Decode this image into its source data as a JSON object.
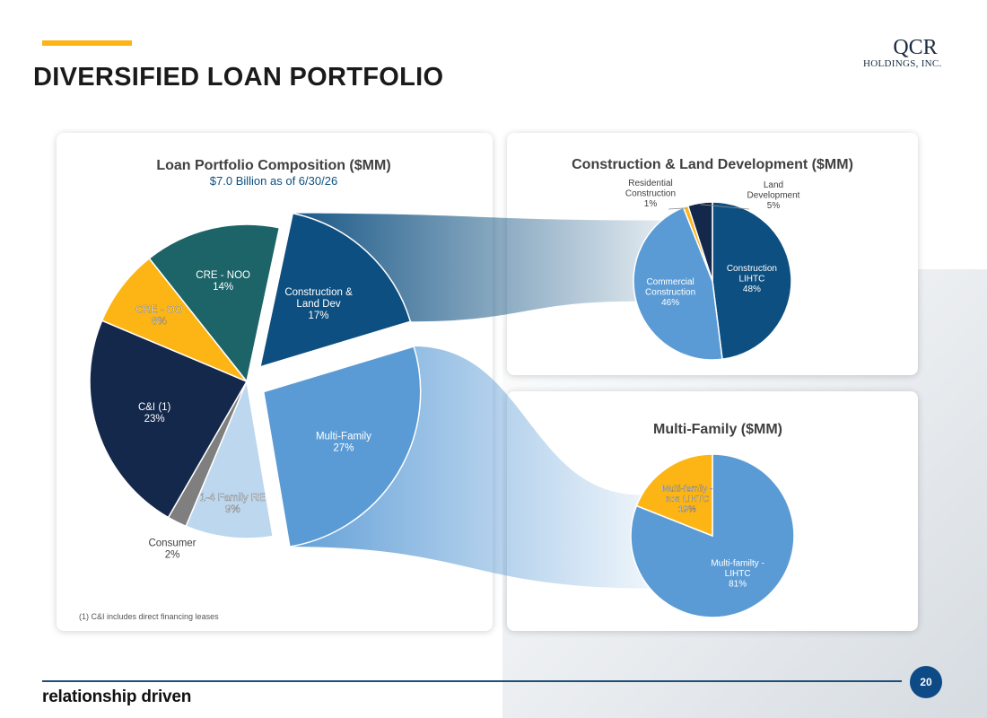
{
  "header": {
    "title": "DIVERSIFIED LOAN PORTFOLIO",
    "accent_color": "#FDB515"
  },
  "logo": {
    "line1": "QCR",
    "line2": "HOLDINGS, INC."
  },
  "chart_data": [
    {
      "type": "pie",
      "title": "Loan Portfolio Composition ($MM)",
      "subtitle": "$7.0 Billion as of 6/30/26",
      "slices": [
        {
          "name": "Construction & Land Dev",
          "value": 17,
          "label_lines": [
            "Construction &",
            "Land Dev",
            "17%"
          ],
          "color": "#0D4F80",
          "exploded": true
        },
        {
          "name": "Multi-Family",
          "value": 27,
          "label_lines": [
            "Multi-Family",
            "27%"
          ],
          "color": "#5B9BD5",
          "exploded": true
        },
        {
          "name": "1-4 Family RE",
          "value": 9,
          "label_lines": [
            "1-4 Family RE",
            "9%"
          ],
          "color": "#BDD7EE"
        },
        {
          "name": "Consumer",
          "value": 2,
          "label_lines": [
            "Consumer",
            "2%"
          ],
          "color": "#7F7F7F"
        },
        {
          "name": "C&I (1)",
          "value": 23,
          "label_lines": [
            "C&I (1)",
            "23%"
          ],
          "color": "#14284B"
        },
        {
          "name": "CRE - OO",
          "value": 8,
          "label_lines": [
            "CRE - OO",
            "8%"
          ],
          "color": "#FDB515"
        },
        {
          "name": "CRE - NOO",
          "value": 14,
          "label_lines": [
            "CRE - NOO",
            "14%"
          ],
          "color": "#1C6468"
        }
      ]
    },
    {
      "type": "pie",
      "title": "Construction & Land Development ($MM)",
      "slices": [
        {
          "name": "Construction LIHTC",
          "value": 48,
          "label_lines": [
            "Construction",
            "LIHTC",
            "48%"
          ],
          "color": "#0D4F80"
        },
        {
          "name": "Commercial Construction",
          "value": 46,
          "label_lines": [
            "Commercial",
            "Construction",
            "46%"
          ],
          "color": "#5B9BD5"
        },
        {
          "name": "Residential Construction",
          "value": 1,
          "label_lines": [
            "Residential",
            "Construction",
            "1%"
          ],
          "color": "#FDB515"
        },
        {
          "name": "Land Development",
          "value": 5,
          "label_lines": [
            "Land",
            "Development",
            "5%"
          ],
          "color": "#14284B"
        }
      ]
    },
    {
      "type": "pie",
      "title": "Multi-Family ($MM)",
      "slices": [
        {
          "name": "Multi-familty - LIHTC",
          "value": 81,
          "label_lines": [
            "Multi-familty -",
            "LIHTC",
            "81%"
          ],
          "color": "#5B9BD5"
        },
        {
          "name": "Multi-family - non LIHTC",
          "value": 19,
          "label_lines": [
            "Multi-family -",
            "non LIHTC",
            "19%"
          ],
          "color": "#FDB515"
        }
      ]
    }
  ],
  "footnote": "(1)    C&I includes direct financing leases",
  "footer": {
    "tagline": "relationship driven",
    "page_number": "20",
    "line_color": "#1E4E79"
  }
}
